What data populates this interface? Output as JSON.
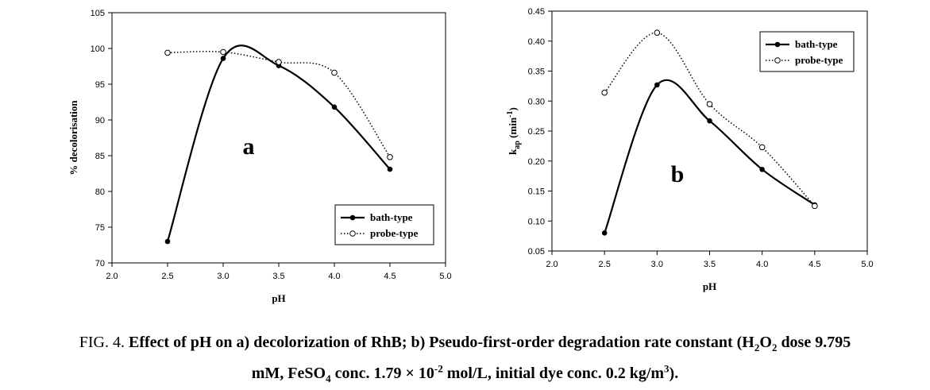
{
  "caption": {
    "fig": "FIG. 4. ",
    "l1_a": "Effect of pH on a) decolorization of RhB; b) Pseudo-first-order degradation rate constant (H",
    "l1_sub1": "2",
    "l1_b": "O",
    "l1_sub2": "2",
    "l1_c": " dose 9.795",
    "l2_a": "mM, FeSO",
    "l2_sub": "4",
    "l2_b": " conc. 1.79 × 10",
    "l2_sup1": "-2",
    "l2_c": " mol/L, initial dye conc. 0.2 kg/m",
    "l2_sup2": "3",
    "l2_d": ")."
  },
  "chart_data": [
    {
      "type": "line",
      "panel_label": "a",
      "xlabel": "pH",
      "ylabel": "% decolorisation",
      "xlim": [
        2.0,
        5.0
      ],
      "ylim": [
        70,
        105
      ],
      "xticks": [
        "2.0",
        "2.5",
        "3.0",
        "3.5",
        "4.0",
        "4.5",
        "5.0"
      ],
      "yticks": [
        "70",
        "75",
        "80",
        "85",
        "90",
        "95",
        "100",
        "105"
      ],
      "legend_position": "lower-right",
      "series": [
        {
          "name": "bath-type",
          "style": "solid",
          "marker": "filled-circle",
          "color": "#000000",
          "x": [
            2.5,
            3.0,
            3.5,
            4.0,
            4.5
          ],
          "y": [
            73.0,
            98.6,
            97.6,
            91.8,
            83.1
          ]
        },
        {
          "name": "probe-type",
          "style": "dotted",
          "marker": "open-circle",
          "color": "#000000",
          "x": [
            2.5,
            3.0,
            3.5,
            4.0,
            4.5
          ],
          "y": [
            99.4,
            99.5,
            98.1,
            96.6,
            84.8
          ]
        }
      ]
    },
    {
      "type": "line",
      "panel_label": "b",
      "xlabel": "pH",
      "ylabel": "k",
      "ylabel_sub": "ap",
      "ylabel_unit": " (min",
      "ylabel_unit_sup": "-1",
      "ylabel_end": ")",
      "xlim": [
        2.0,
        5.0
      ],
      "ylim": [
        0.05,
        0.45
      ],
      "xticks": [
        "2.0",
        "2.5",
        "3.0",
        "3.5",
        "4.0",
        "4.5",
        "5.0"
      ],
      "yticks": [
        "0.05",
        "0.10",
        "0.15",
        "0.20",
        "0.25",
        "0.30",
        "0.35",
        "0.40",
        "0.45"
      ],
      "legend_position": "top-right",
      "series": [
        {
          "name": "bath-type",
          "style": "solid",
          "marker": "filled-circle",
          "color": "#000000",
          "x": [
            2.5,
            3.0,
            3.5,
            4.0,
            4.5
          ],
          "y": [
            0.08,
            0.327,
            0.267,
            0.186,
            0.127
          ]
        },
        {
          "name": "probe-type",
          "style": "dotted",
          "marker": "open-circle",
          "color": "#000000",
          "x": [
            2.5,
            3.0,
            3.5,
            4.0,
            4.5
          ],
          "y": [
            0.314,
            0.414,
            0.295,
            0.223,
            0.125
          ]
        }
      ]
    }
  ]
}
